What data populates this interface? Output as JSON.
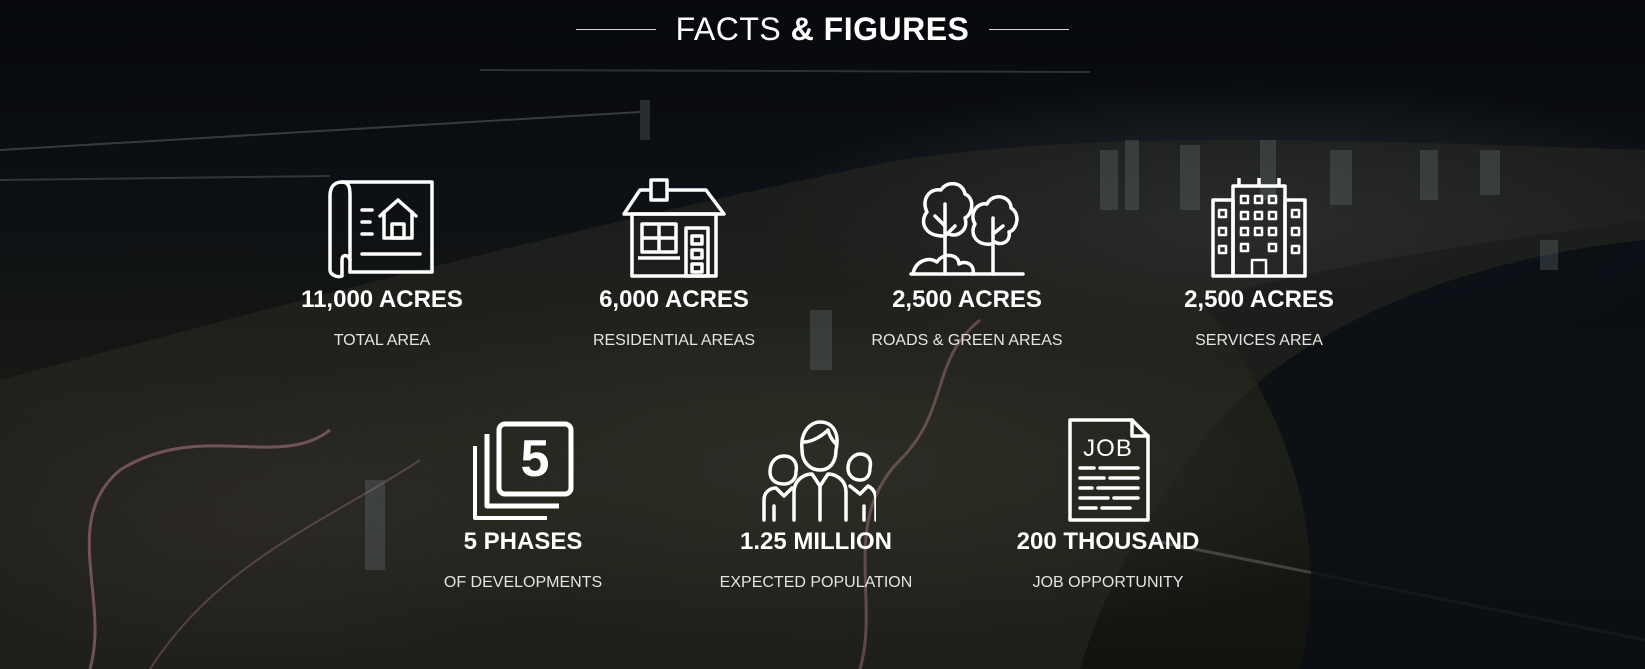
{
  "header": {
    "title_light": "FACTS",
    "title_bold": "& FIGURES"
  },
  "stats": [
    {
      "value": "11,000 ACRES",
      "label": "TOTAL AREA",
      "icon": "blueprint-house-icon"
    },
    {
      "value": "6,000 ACRES",
      "label": "RESIDENTIAL AREAS",
      "icon": "house-icon"
    },
    {
      "value": "2,500 ACRES",
      "label": "ROADS & GREEN AREAS",
      "icon": "trees-icon"
    },
    {
      "value": "2,500 ACRES",
      "label": "SERVICES AREA",
      "icon": "building-icon"
    },
    {
      "value": "5 PHASES",
      "label": "OF DEVELOPMENTS",
      "icon": "phases-five-icon"
    },
    {
      "value": "1.25 MILLION",
      "label": "EXPECTED POPULATION",
      "icon": "people-icon"
    },
    {
      "value": "200 THOUSAND",
      "label": "JOB OPPORTUNITY",
      "icon": "job-document-icon"
    }
  ],
  "colors": {
    "text": "#ffffff",
    "background": "#0b0d12"
  }
}
